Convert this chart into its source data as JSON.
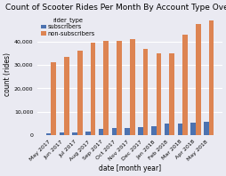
{
  "title": "Count of Scooter Rides Per Month By Account Type Over Time",
  "xlabel": "date [month year]",
  "ylabel": "count (rides)",
  "legend_title": "rider_type",
  "categories": [
    "May 2017",
    "Jun 2017",
    "Jul 2017",
    "Aug 2017",
    "Sep 2017",
    "Oct 2017",
    "Nov 2017",
    "Dec 2017",
    "Jan 2018",
    "Feb 2018",
    "Mar 2018",
    "Apr 2018",
    "May 2018"
  ],
  "subscribers": [
    900,
    1100,
    1050,
    1650,
    2700,
    3100,
    3100,
    3300,
    3800,
    4900,
    5000,
    5300,
    5600
  ],
  "non_subscribers": [
    31000,
    33500,
    36000,
    39500,
    40500,
    40500,
    41000,
    37000,
    35000,
    35000,
    43000,
    47500,
    49000
  ],
  "subscriber_color": "#4c72b0",
  "non_subscriber_color": "#dd8452",
  "bg_color": "#eaeaf2",
  "fig_bg_color": "#eaeaf2",
  "grid_color": "white",
  "title_fontsize": 6.5,
  "label_fontsize": 5.5,
  "tick_fontsize": 4.5,
  "legend_fontsize": 4.8,
  "bar_width": 0.38,
  "ylim_max": 52000,
  "yticks": [
    0,
    10000,
    20000,
    30000,
    40000
  ]
}
